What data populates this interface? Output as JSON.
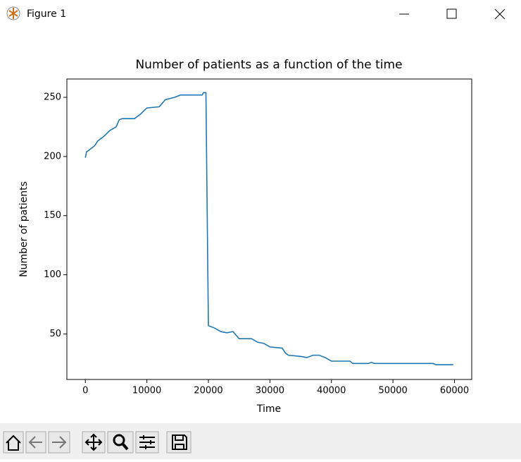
{
  "window": {
    "title": "Figure 1"
  },
  "chart_data": {
    "type": "line",
    "title": "Number of patients as a function of the time",
    "x_label": "Time",
    "y_label": "Number of patients",
    "x": [
      0,
      200,
      500,
      1500,
      2000,
      3000,
      4000,
      5000,
      5500,
      6000,
      8000,
      9000,
      10000,
      12000,
      13000,
      14500,
      15500,
      19000,
      19200,
      19600,
      20000,
      21000,
      22000,
      23000,
      24000,
      25000,
      27000,
      28000,
      29000,
      30000,
      32000,
      32500,
      33000,
      35000,
      36000,
      37000,
      38000,
      39000,
      40000,
      43000,
      43500,
      46000,
      46500,
      47000,
      56500,
      57000,
      59800
    ],
    "series": [
      {
        "name": "patients",
        "color": "#1f77b4",
        "values": [
          199,
          204,
          205,
          209,
          213,
          217,
          222,
          225,
          231,
          232,
          232,
          236,
          241,
          242,
          248,
          250,
          252,
          252,
          254,
          254,
          57,
          55,
          52,
          51,
          52,
          46,
          46,
          43,
          42,
          39,
          38,
          34,
          32,
          31,
          30,
          32,
          32,
          30,
          27,
          27,
          25,
          25,
          26,
          25,
          25,
          24,
          24
        ]
      }
    ],
    "xlim": [
      -3000,
      62800
    ],
    "ylim": [
      11.5,
      265.5
    ],
    "xticks": [
      0,
      10000,
      20000,
      30000,
      40000,
      50000,
      60000
    ],
    "yticks": [
      50,
      100,
      150,
      200,
      250
    ]
  }
}
